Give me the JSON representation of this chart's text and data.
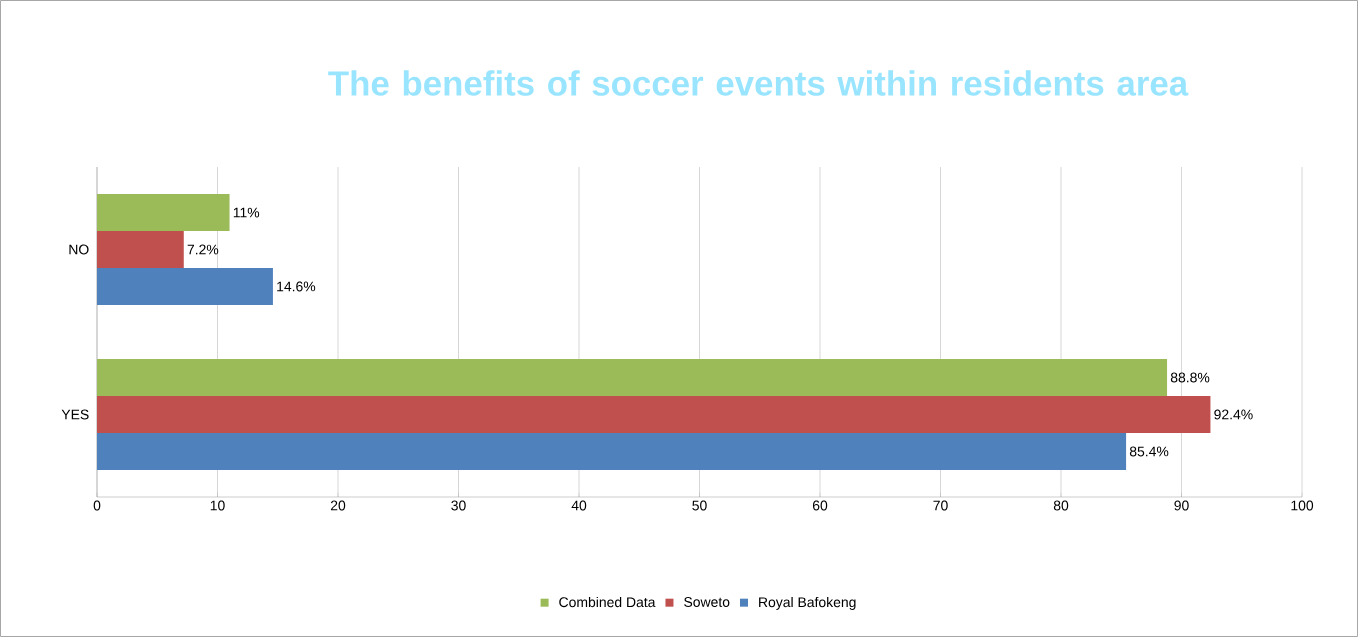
{
  "chart_data": {
    "type": "bar",
    "orientation": "horizontal",
    "title": "The benefits of soccer events within residents area",
    "categories": [
      "NO",
      "YES"
    ],
    "series": [
      {
        "name": "Combined Data",
        "color": "#9bbb59",
        "values": [
          11,
          88.8
        ],
        "value_labels": [
          "11%",
          "88.8%"
        ]
      },
      {
        "name": "Soweto",
        "color": "#c0504d",
        "values": [
          7.2,
          92.4
        ],
        "value_labels": [
          "7.2%",
          "92.4%"
        ]
      },
      {
        "name": "Royal Bafokeng",
        "color": "#4f81bd",
        "values": [
          14.6,
          85.4
        ],
        "value_labels": [
          "14.6%",
          "85.4%"
        ]
      }
    ],
    "xlim": [
      0,
      100
    ],
    "xticks": [
      0,
      10,
      20,
      30,
      40,
      50,
      60,
      70,
      80,
      90,
      100
    ],
    "grid": "x",
    "legend": "bottom"
  }
}
